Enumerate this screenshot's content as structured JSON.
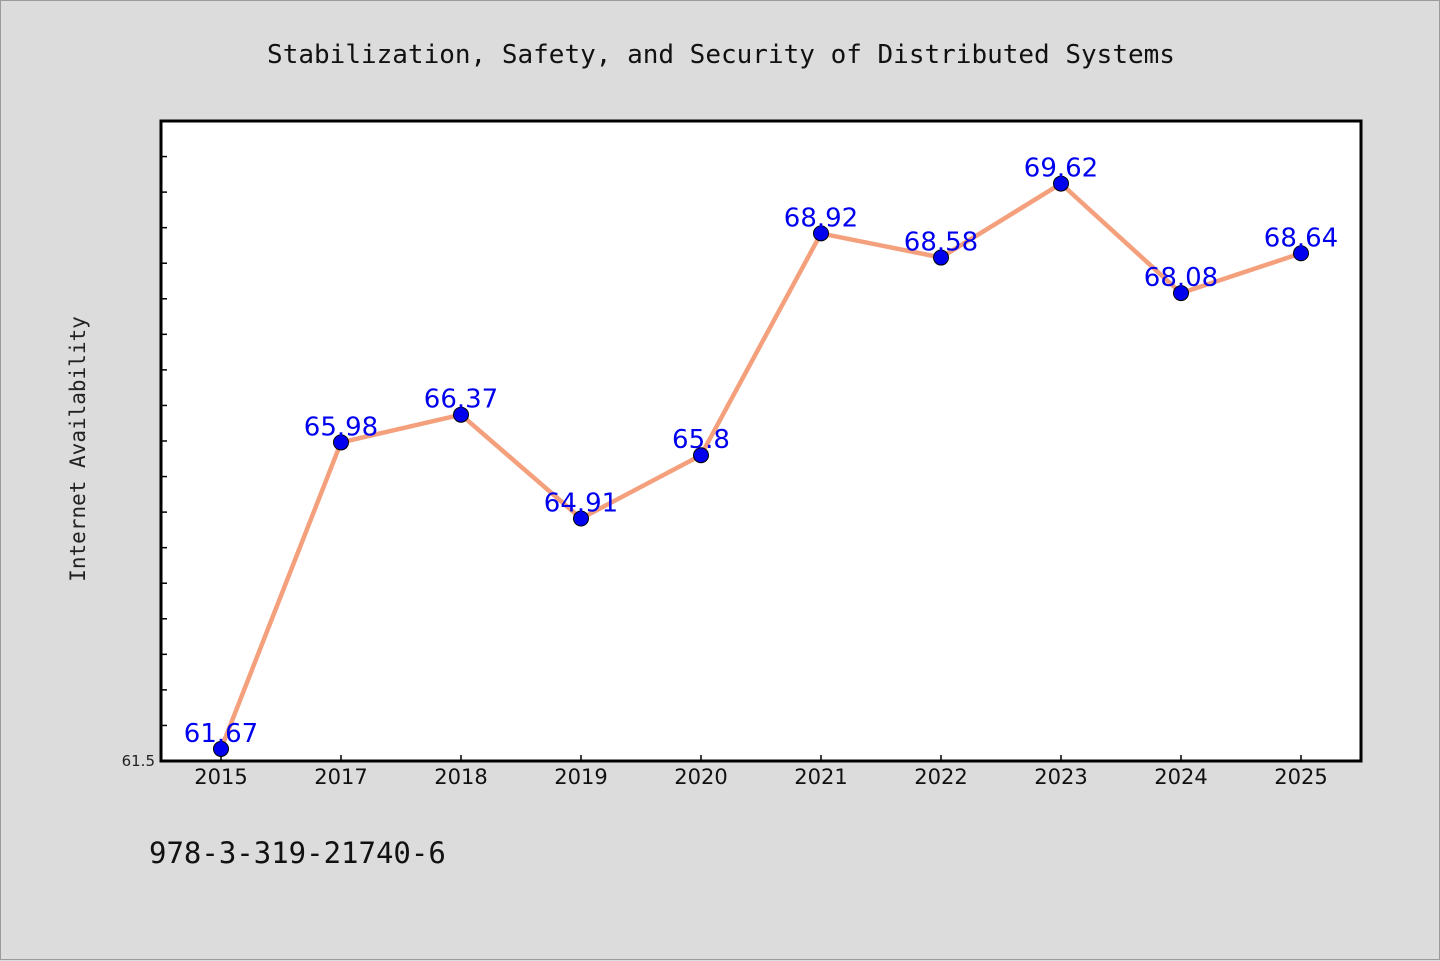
{
  "chart_data": {
    "type": "line",
    "title": "Stabilization, Safety, and Security of Distributed Systems",
    "xlabel": "",
    "ylabel": "Internet Availability",
    "categories": [
      "2015",
      "2017",
      "2018",
      "2019",
      "2020",
      "2021",
      "2022",
      "2023",
      "2024",
      "2025"
    ],
    "series": [
      {
        "values": [
          61.67,
          65.98,
          66.37,
          64.91,
          65.8,
          68.92,
          68.58,
          69.62,
          68.08,
          68.64
        ]
      }
    ],
    "data_labels": [
      "61.67",
      "65.98",
      "66.37",
      "64.91",
      "65.8",
      "68.92",
      "68.58",
      "69.62",
      "68.08",
      "68.64"
    ],
    "y_tick_labels": [
      "61.5"
    ],
    "ylim": [
      61.5,
      70.5
    ],
    "grid": false,
    "legend": "none"
  },
  "footer": {
    "isbn": "978-3-319-21740-6"
  },
  "colors": {
    "background": "#dcdcdc",
    "plot_area": "#ffffff",
    "line": "#f4a07c",
    "marker": "#0000ee",
    "data_label": "#0000ee"
  }
}
